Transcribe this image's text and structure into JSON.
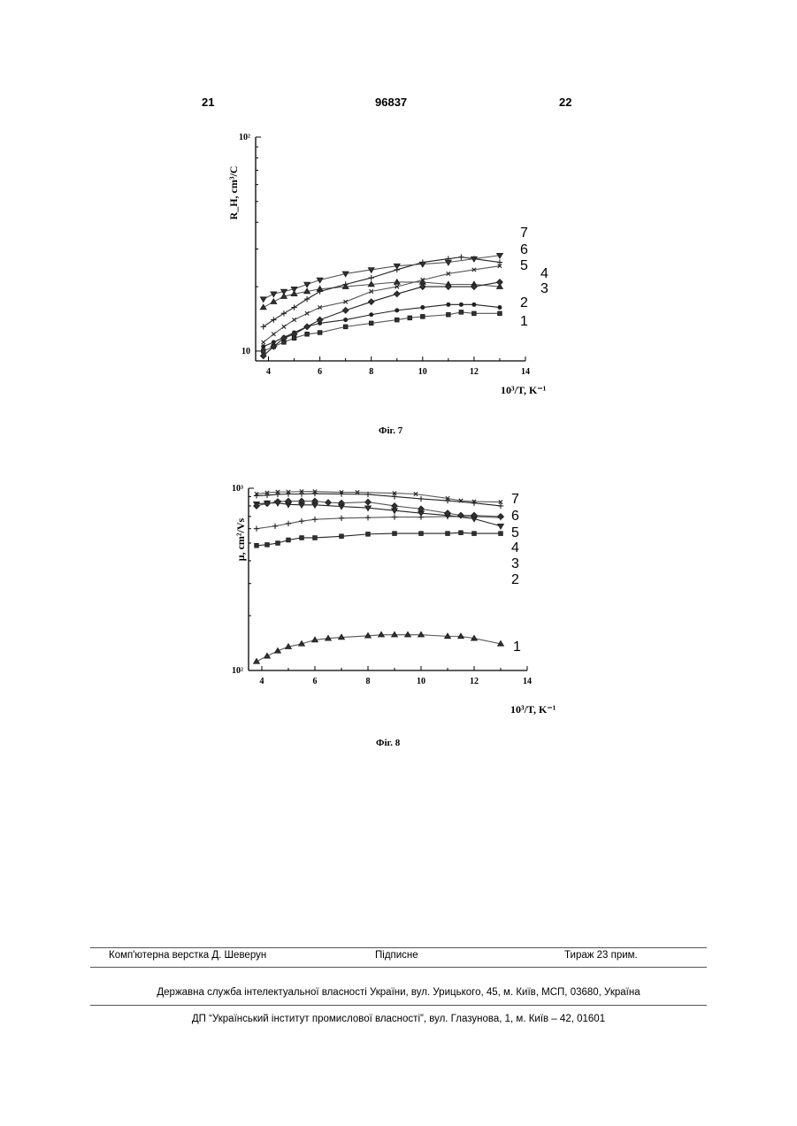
{
  "header": {
    "left_page": "21",
    "patent_no": "96837",
    "right_page": "22"
  },
  "figures": {
    "fig7_caption": "Фіг. 7",
    "fig8_caption": "Фіг. 8"
  },
  "chart_data": [
    {
      "type": "line",
      "yscale": "log",
      "xlim": [
        3.5,
        14
      ],
      "ylim": [
        9,
        100
      ],
      "xticks": [
        4,
        6,
        8,
        10,
        12,
        14
      ],
      "ytick_labels": [
        "10",
        "10²"
      ],
      "xlabel": "10³/T, K⁻¹",
      "ylabel": "R_H, cm³/C",
      "series": [
        {
          "name": "1",
          "marker": "square",
          "x": [
            3.8,
            4.2,
            4.6,
            5,
            5.5,
            6,
            7,
            8,
            9,
            9.5,
            10,
            11,
            11.5,
            12,
            13
          ],
          "values": [
            10,
            10.5,
            11,
            11.5,
            12,
            12.2,
            13,
            13.5,
            14,
            14.3,
            14.5,
            14.8,
            15.2,
            15,
            15
          ]
        },
        {
          "name": "2",
          "marker": "circle",
          "x": [
            3.8,
            4.2,
            4.6,
            5,
            5.5,
            6,
            7,
            8,
            9,
            10,
            11,
            11.5,
            12,
            13
          ],
          "values": [
            10.5,
            11,
            11.6,
            12.2,
            13,
            13.5,
            14,
            14.8,
            15.5,
            16,
            16.5,
            16.5,
            16.5,
            16
          ]
        },
        {
          "name": "3",
          "marker": "triangle",
          "x": [
            3.8,
            4.2,
            4.6,
            5,
            5.5,
            6,
            7,
            8,
            9,
            10,
            11,
            12,
            13
          ],
          "values": [
            16,
            17,
            18,
            18.5,
            19,
            19.5,
            20,
            20.5,
            21,
            21,
            20.5,
            20.5,
            20
          ]
        },
        {
          "name": "4",
          "marker": "diamond",
          "x": [
            3.8,
            4.2,
            4.6,
            5,
            5.5,
            6,
            7,
            8,
            9,
            10,
            11,
            12,
            13
          ],
          "values": [
            9.5,
            10.5,
            11.5,
            12,
            13,
            14,
            15.5,
            17,
            18.5,
            20,
            20,
            20,
            21
          ]
        },
        {
          "name": "5",
          "marker": "cross",
          "x": [
            3.8,
            4.2,
            4.6,
            5,
            5.5,
            6,
            7,
            8,
            9,
            10,
            11,
            12,
            13
          ],
          "values": [
            11,
            12,
            13,
            14,
            15,
            16,
            17,
            19,
            20,
            21.5,
            23,
            24,
            25
          ]
        },
        {
          "name": "6",
          "marker": "plus",
          "x": [
            3.8,
            4.2,
            4.6,
            5,
            5.5,
            6,
            7,
            8,
            9,
            10,
            11,
            11.5,
            12,
            13
          ],
          "values": [
            13,
            14,
            15,
            16,
            17.5,
            19,
            20.5,
            22,
            24,
            26,
            27,
            27.5,
            27,
            26
          ]
        },
        {
          "name": "7",
          "marker": "triangle-down",
          "x": [
            3.8,
            4.2,
            4.6,
            5,
            5.5,
            6,
            7,
            8,
            9,
            10,
            11,
            12,
            13
          ],
          "values": [
            17.5,
            18.5,
            19,
            19.5,
            20.5,
            21.5,
            23,
            24,
            25,
            25.5,
            26,
            27,
            28
          ]
        }
      ],
      "curve_labels": [
        "7",
        "6",
        "5",
        "4",
        "3",
        "2",
        "1"
      ]
    },
    {
      "type": "line",
      "yscale": "log",
      "xlim": [
        3.5,
        14
      ],
      "ylim": [
        100,
        1000
      ],
      "xticks": [
        4,
        6,
        8,
        10,
        12,
        14
      ],
      "ytick_labels": [
        "10²",
        "10³"
      ],
      "xlabel": "10³/T, K⁻¹",
      "ylabel": "μ, cm²/Vs",
      "series": [
        {
          "name": "1",
          "marker": "triangle",
          "x": [
            3.8,
            4.2,
            4.6,
            5,
            5.5,
            6,
            6.5,
            7,
            8,
            8.5,
            9,
            9.5,
            10,
            11,
            11.5,
            12,
            13
          ],
          "values": [
            112,
            120,
            128,
            135,
            140,
            147,
            150,
            152,
            155,
            157,
            157,
            157,
            157,
            154,
            154,
            150,
            140
          ]
        },
        {
          "name": "2",
          "marker": "square",
          "x": [
            3.8,
            4.2,
            4.6,
            5,
            5.5,
            6,
            7,
            8,
            9,
            10,
            11,
            11.5,
            12,
            13
          ],
          "values": [
            485,
            490,
            500,
            520,
            535,
            535,
            545,
            560,
            565,
            565,
            565,
            570,
            565,
            565
          ]
        },
        {
          "name": "3",
          "marker": "plus",
          "x": [
            3.8,
            4.5,
            5,
            5.5,
            6,
            7,
            8,
            9,
            10,
            11,
            12,
            13
          ],
          "values": [
            600,
            620,
            640,
            660,
            675,
            685,
            690,
            695,
            695,
            700,
            700,
            690
          ]
        },
        {
          "name": "4",
          "marker": "triangle-down",
          "x": [
            3.8,
            4.2,
            4.6,
            5,
            5.5,
            6,
            7,
            8,
            9,
            10,
            11,
            12,
            13
          ],
          "values": [
            820,
            830,
            830,
            815,
            810,
            810,
            795,
            780,
            755,
            730,
            710,
            680,
            620
          ]
        },
        {
          "name": "5",
          "marker": "diamond",
          "x": [
            3.8,
            4.2,
            4.6,
            5,
            5.5,
            6,
            6.5,
            7,
            8,
            9,
            10,
            11,
            11.5,
            12,
            13
          ],
          "values": [
            800,
            825,
            845,
            850,
            850,
            850,
            835,
            830,
            840,
            800,
            770,
            730,
            710,
            710,
            700
          ]
        },
        {
          "name": "6",
          "marker": "plus",
          "x": [
            3.8,
            4.2,
            4.6,
            5,
            5.5,
            6,
            7,
            8,
            9,
            10,
            11,
            12,
            13
          ],
          "values": [
            910,
            915,
            925,
            930,
            930,
            935,
            930,
            925,
            900,
            875,
            855,
            830,
            800
          ]
        },
        {
          "name": "7",
          "marker": "cross",
          "x": [
            3.8,
            4.2,
            4.6,
            5,
            5.5,
            6,
            7,
            7.6,
            9,
            9.8,
            11,
            11.5,
            12,
            13
          ],
          "values": [
            930,
            945,
            955,
            955,
            960,
            960,
            950,
            950,
            940,
            930,
            880,
            855,
            845,
            840
          ]
        }
      ],
      "curve_labels": [
        "7",
        "6",
        "5",
        "4",
        "3",
        "2",
        "1"
      ]
    }
  ],
  "footer": {
    "layout_credit": "Комп'ютерна верстка Д. Шеверун",
    "subscription": "Підписне",
    "circulation": "Тираж 23 прим.",
    "agency": "Державна служба інтелектуальної власності України, вул. Урицького, 45, м. Київ, МСП, 03680, Україна",
    "institute": "ДП “Український інститут промислової власності”, вул. Глазунова, 1, м. Київ – 42, 01601"
  }
}
